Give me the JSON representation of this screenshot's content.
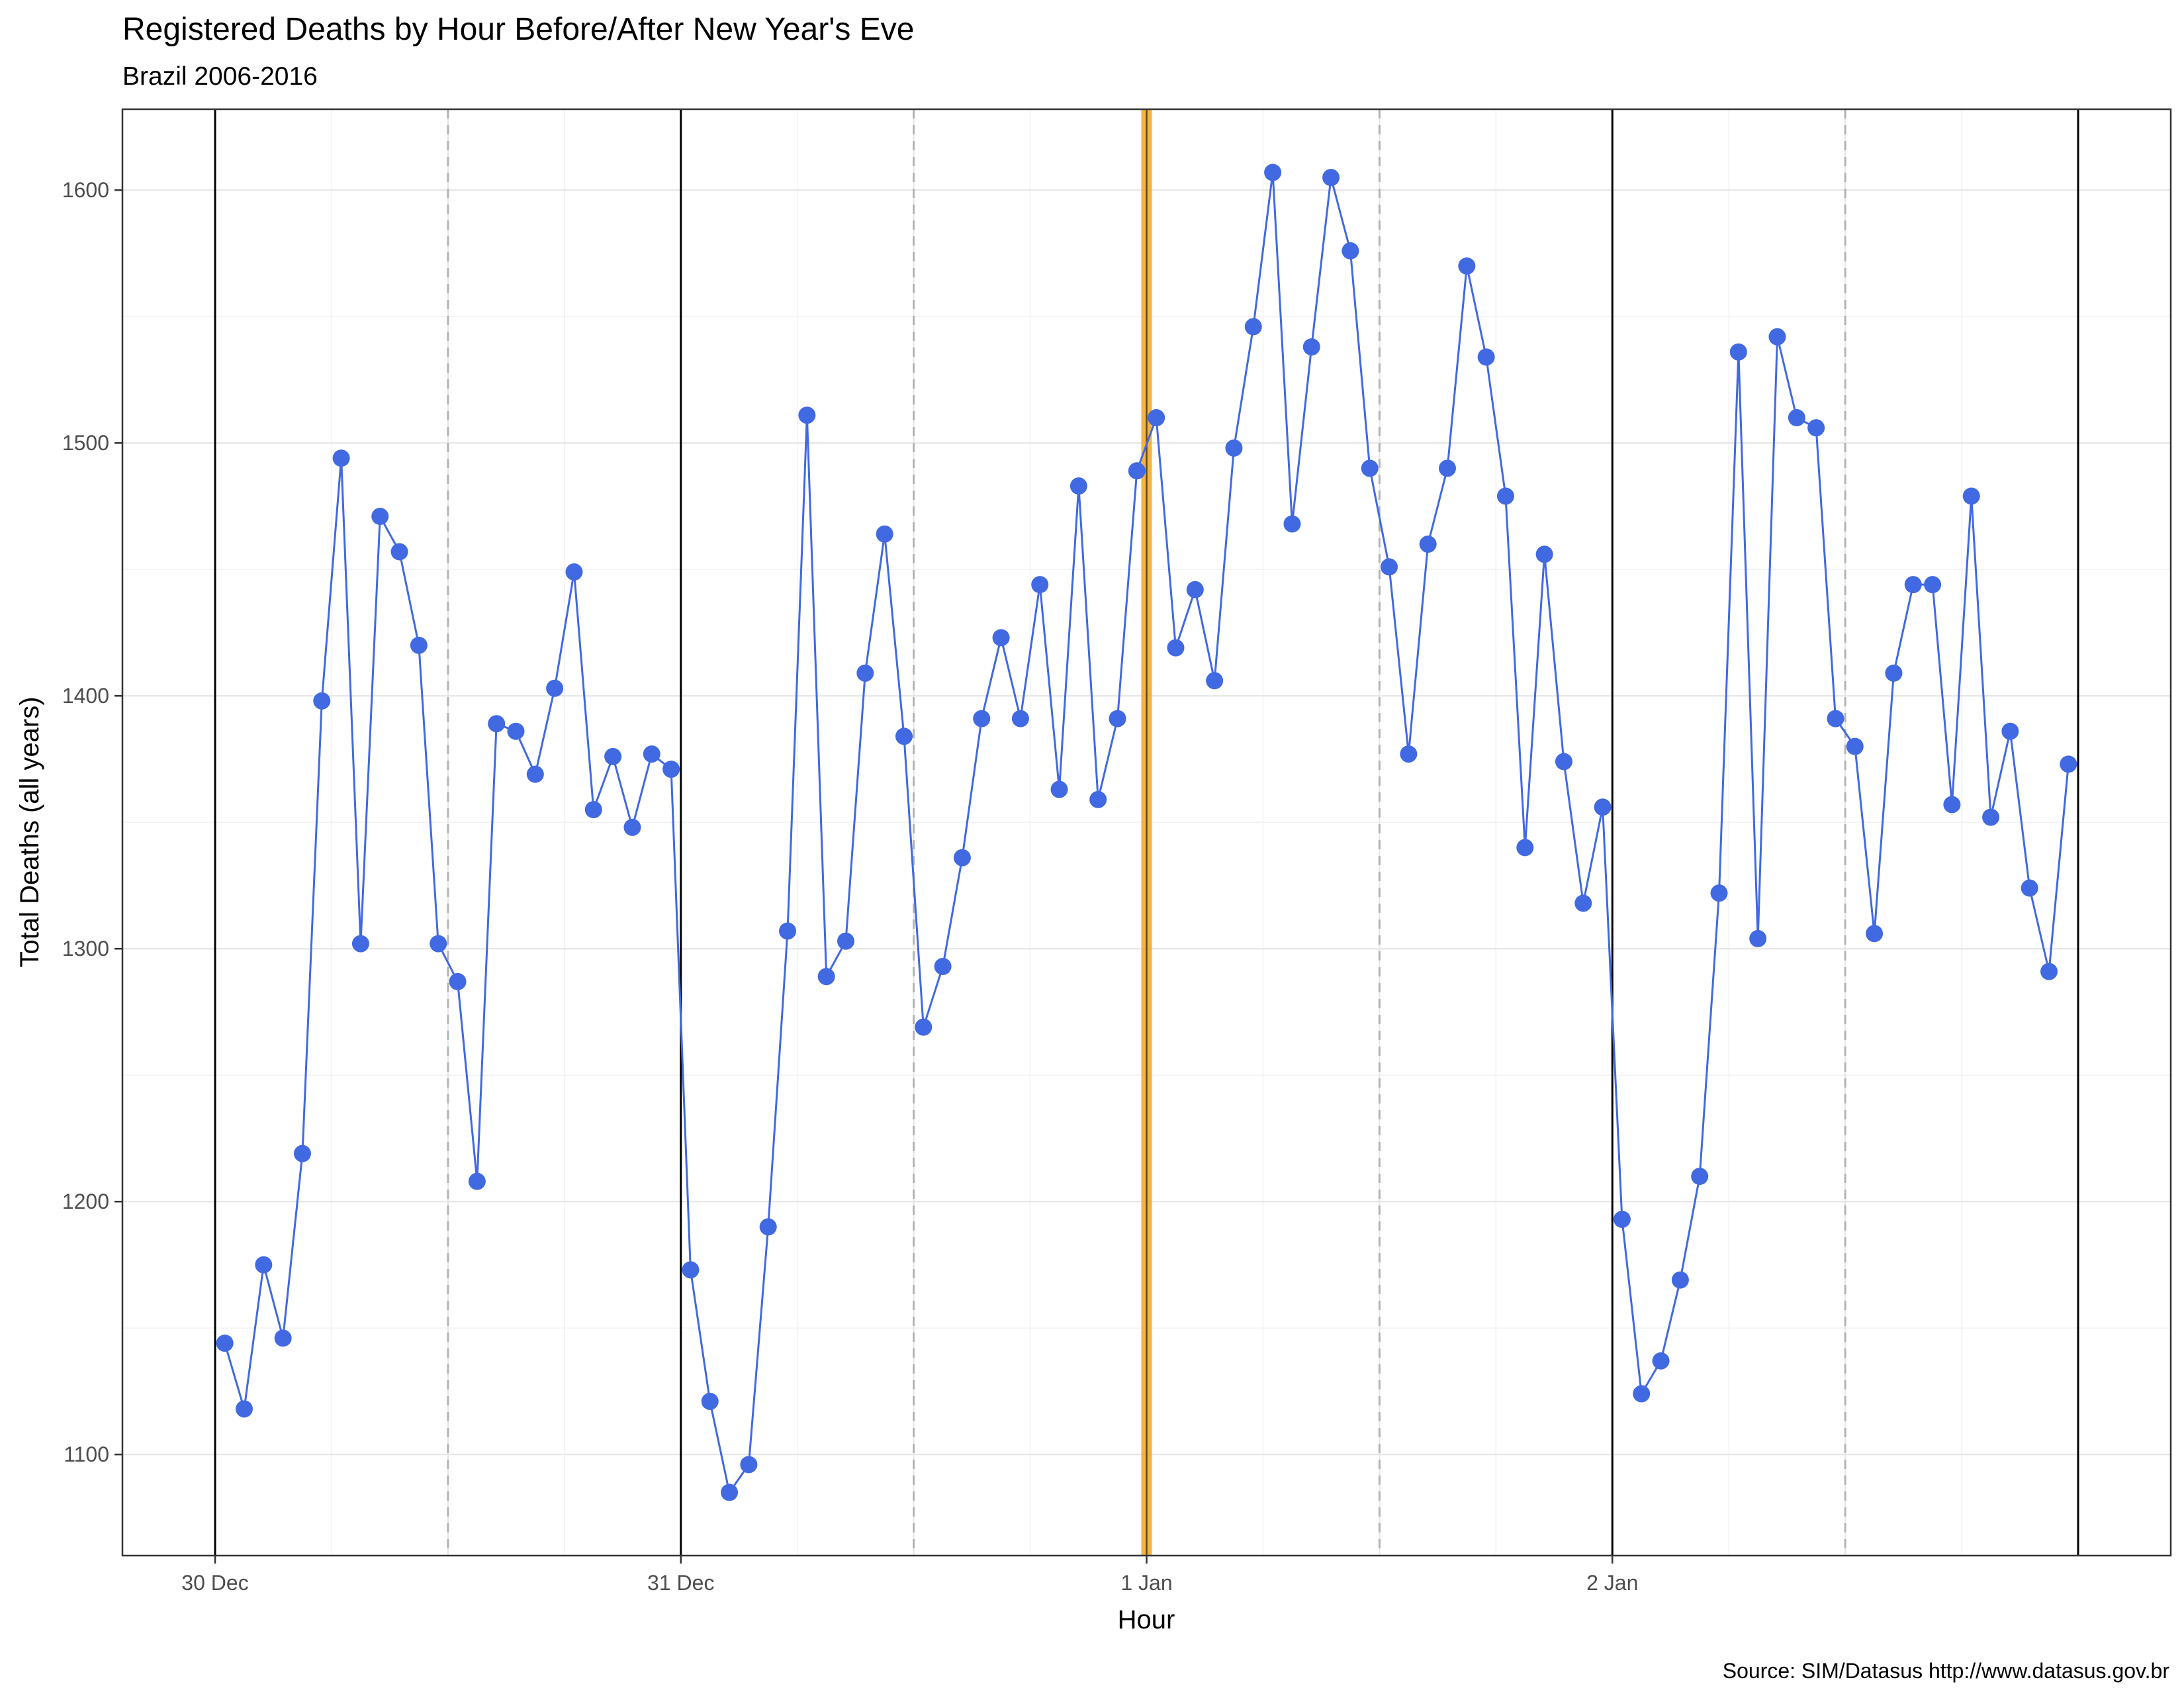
{
  "chart_data": {
    "type": "line",
    "title": "Registered Deaths by Hour Before/After New Year's Eve",
    "subtitle": "Brazil 2006-2016",
    "xlabel": "Hour",
    "ylabel": "Total Deaths (all years)",
    "caption": "Source: SIM/Datasus http://www.datasus.gov.br",
    "x_unit": "hour",
    "x_start": "30 Dec 00:00",
    "x_end": "3 Jan 00:00",
    "x_ticks": [
      {
        "label": "30 Dec",
        "at": "30 Dec 00:00"
      },
      {
        "label": "31 Dec",
        "at": "31 Dec 00:00"
      },
      {
        "label": "1 Jan",
        "at": "1 Jan 00:00"
      },
      {
        "label": "2 Jan",
        "at": "2 Jan 00:00"
      }
    ],
    "ylim": [
      1060,
      1632
    ],
    "y_ticks": [
      1100,
      1200,
      1300,
      1400,
      1500,
      1600
    ],
    "grid": true,
    "day_boundaries": [
      "30 Dec 00:00",
      "31 Dec 00:00",
      "2 Jan 00:00",
      "3 Jan 00:00"
    ],
    "midday_lines": [
      "30 Dec 12:00",
      "31 Dec 12:00",
      "1 Jan 12:00",
      "2 Jan 12:00"
    ],
    "highlight": {
      "at": "1 Jan 00:00",
      "color": "#f5a623"
    },
    "colors": {
      "series": "#4169e1",
      "highlight": "#f5a623",
      "day_line": "#000000",
      "midday_line": "#b3b3b3"
    },
    "series": [
      {
        "x_start": "30 Dec 00:00",
        "values": [
          1144,
          1118,
          1175,
          1146,
          1219,
          1398,
          1494,
          1302,
          1471,
          1457,
          1420,
          1302,
          1287,
          1208,
          1389,
          1386,
          1369,
          1403,
          1449,
          1355,
          1376,
          1348,
          1377,
          1371,
          1173,
          1121,
          1085,
          1096,
          1190,
          1307,
          1511,
          1289,
          1303,
          1409,
          1464,
          1384,
          1269,
          1293,
          1336,
          1391,
          1423,
          1391,
          1444,
          1363,
          1483,
          1359,
          1391,
          1489,
          1510,
          1419,
          1442,
          1406,
          1498,
          1546,
          1607,
          1468,
          1538,
          1605,
          1576,
          1490,
          1451,
          1377,
          1460,
          1490,
          1570,
          1534,
          1479,
          1340,
          1456,
          1374,
          1318,
          1356,
          1193,
          1124,
          1137,
          1169,
          1210,
          1322,
          1536,
          1304,
          1542,
          1510,
          1506,
          1391,
          1380,
          1306,
          1409,
          1444,
          1444,
          1357,
          1479,
          1352,
          1386,
          1324,
          1291,
          1373
        ]
      }
    ]
  }
}
